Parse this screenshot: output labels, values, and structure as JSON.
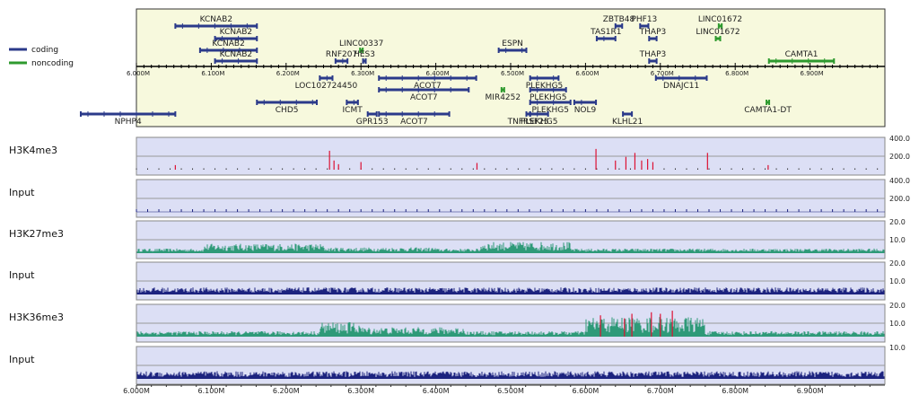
{
  "chart_data": {
    "type": "genome-browser",
    "x_range": [
      6000000,
      7000000
    ],
    "x_unit": "bp",
    "tick_labels": [
      "6.000M",
      "6.100M",
      "6.200M",
      "6.300M",
      "6.400M",
      "6.500M",
      "6.600M",
      "6.700M",
      "6.800M",
      "6.900M"
    ],
    "tick_values": [
      6000000,
      6100000,
      6200000,
      6300000,
      6400000,
      6500000,
      6600000,
      6700000,
      6800000,
      6900000
    ],
    "legend": [
      {
        "name": "coding",
        "color": "#2b3a8a"
      },
      {
        "name": "noncoding",
        "color": "#2e9a2e"
      }
    ],
    "colors": {
      "coding": "#2b3a8a",
      "noncoding": "#2e9a2e",
      "gene_panel_bg": "#f7f9dd",
      "track_bg": "#dcdff5",
      "signal_teal": "#2e9a78",
      "signal_red": "#dd1133",
      "signal_navy": "#1c237f"
    },
    "genes": [
      {
        "label": "KCNAB2",
        "start": 6052000,
        "end": 6161000,
        "strand": "+",
        "type": "coding",
        "side": "above",
        "row": 0
      },
      {
        "label": "KCNAB2",
        "start": 6105000,
        "end": 6161000,
        "strand": "+",
        "type": "coding",
        "side": "above",
        "row": 1
      },
      {
        "label": "KCNAB2",
        "start": 6085000,
        "end": 6161000,
        "strand": "+",
        "type": "coding",
        "side": "above",
        "row": 2
      },
      {
        "label": "KCNAB2",
        "start": 6105000,
        "end": 6161000,
        "strand": "+",
        "type": "coding",
        "side": "above",
        "row": 3
      },
      {
        "label": "LINC00337",
        "start": 6300000,
        "end": 6303000,
        "strand": "-",
        "type": "noncoding",
        "side": "above",
        "row": 2
      },
      {
        "label": "RNF207",
        "start": 6266000,
        "end": 6282000,
        "strand": "+",
        "type": "coding",
        "side": "above",
        "row": 3
      },
      {
        "label": "HES3",
        "start": 6304000,
        "end": 6306000,
        "strand": "+",
        "type": "coding",
        "side": "above",
        "row": 3
      },
      {
        "label": "ESPN",
        "start": 6484000,
        "end": 6521000,
        "strand": "+",
        "type": "coding",
        "side": "above",
        "row": 2
      },
      {
        "label": "ZBTB48",
        "start": 6640000,
        "end": 6649000,
        "strand": "+",
        "type": "coding",
        "side": "above",
        "row": 0
      },
      {
        "label": "PHF13",
        "start": 6673000,
        "end": 6684000,
        "strand": "+",
        "type": "coding",
        "side": "above",
        "row": 0
      },
      {
        "label": "TAS1R1",
        "start": 6615000,
        "end": 6640000,
        "strand": "+",
        "type": "coding",
        "side": "above",
        "row": 1
      },
      {
        "label": "THAP3",
        "start": 6685000,
        "end": 6695000,
        "strand": "+",
        "type": "coding",
        "side": "above",
        "row": 1
      },
      {
        "label": "THAP3",
        "start": 6685000,
        "end": 6695000,
        "strand": "+",
        "type": "coding",
        "side": "above",
        "row": 3
      },
      {
        "label": "LINC01672",
        "start": 6778000,
        "end": 6782000,
        "strand": "+",
        "type": "noncoding",
        "side": "above",
        "row": 0
      },
      {
        "label": "LINC01672",
        "start": 6774000,
        "end": 6780000,
        "strand": "+",
        "type": "noncoding",
        "side": "above",
        "row": 1
      },
      {
        "label": "CAMTA1",
        "start": 6845000,
        "end": 6932000,
        "strand": "+",
        "type": "noncoding",
        "side": "above",
        "row": 3
      },
      {
        "label": "LOC102724450",
        "start": 6245000,
        "end": 6262000,
        "strand": "-",
        "type": "coding",
        "side": "below",
        "row": 0
      },
      {
        "label": "ACOT7",
        "start": 6324000,
        "end": 6454000,
        "strand": "-",
        "type": "coding",
        "side": "below",
        "row": 0
      },
      {
        "label": "ACOT7",
        "start": 6324000,
        "end": 6444000,
        "strand": "-",
        "type": "coding",
        "side": "below",
        "row": 1
      },
      {
        "label": "PLEKHG5",
        "start": 6526000,
        "end": 6564000,
        "strand": "-",
        "type": "coding",
        "side": "below",
        "row": 0
      },
      {
        "label": "DNAJC11",
        "start": 6694000,
        "end": 6762000,
        "strand": "-",
        "type": "coding",
        "side": "below",
        "row": 0
      },
      {
        "label": "MIR4252",
        "start": 6489000,
        "end": 6490000,
        "strand": "-",
        "type": "noncoding",
        "side": "below",
        "row": 1
      },
      {
        "label": "PLEKHG5",
        "start": 6526000,
        "end": 6574000,
        "strand": "-",
        "type": "coding",
        "side": "below",
        "row": 1
      },
      {
        "label": "CHD5",
        "start": 6161000,
        "end": 6241000,
        "strand": "-",
        "type": "coding",
        "side": "below",
        "row": 2
      },
      {
        "label": "ICMT",
        "start": 6281000,
        "end": 6296000,
        "strand": "-",
        "type": "coding",
        "side": "below",
        "row": 2
      },
      {
        "label": "PLEKHG5",
        "start": 6526000,
        "end": 6580000,
        "strand": "-",
        "type": "coding",
        "side": "below",
        "row": 2
      },
      {
        "label": "NOL9",
        "start": 6585000,
        "end": 6614000,
        "strand": "-",
        "type": "coding",
        "side": "below",
        "row": 2
      },
      {
        "label": "CAMTA1-DT",
        "start": 6843000,
        "end": 6845000,
        "strand": "-",
        "type": "noncoding",
        "side": "below",
        "row": 2
      },
      {
        "label": "NPHP4",
        "start": 5923000,
        "end": 6052000,
        "strand": "-",
        "type": "coding",
        "side": "below",
        "row": 3
      },
      {
        "label": "GPR153",
        "start": 6309000,
        "end": 6321000,
        "strand": "-",
        "type": "coding",
        "side": "below",
        "row": 3
      },
      {
        "label": "ACOT7",
        "start": 6324000,
        "end": 6418000,
        "strand": "-",
        "type": "coding",
        "side": "below",
        "row": 3
      },
      {
        "label": "TNFRSF25",
        "start": 6521000,
        "end": 6526000,
        "strand": "-",
        "type": "coding",
        "side": "below",
        "row": 3
      },
      {
        "label": "PLEKHG5",
        "start": 6526000,
        "end": 6550000,
        "strand": "-",
        "type": "coding",
        "side": "below",
        "row": 3
      },
      {
        "label": "KLHL21",
        "start": 6650000,
        "end": 6662000,
        "strand": "-",
        "type": "coding",
        "side": "below",
        "row": 3
      }
    ],
    "tracks": [
      {
        "name": "H3K4me3",
        "scale_top": "400.0",
        "scale_mid": "200.0",
        "mid_fraction": 0.5,
        "color": "#dd1133",
        "style": "sparse",
        "peaks": [
          [
            6052000,
            0.15
          ],
          [
            6258000,
            0.62
          ],
          [
            6264000,
            0.3
          ],
          [
            6270000,
            0.18
          ],
          [
            6300000,
            0.25
          ],
          [
            6455000,
            0.22
          ],
          [
            6614000,
            0.68
          ],
          [
            6640000,
            0.3
          ],
          [
            6654000,
            0.42
          ],
          [
            6666000,
            0.55
          ],
          [
            6675000,
            0.3
          ],
          [
            6683000,
            0.35
          ],
          [
            6690000,
            0.25
          ],
          [
            6763000,
            0.55
          ],
          [
            6844000,
            0.15
          ]
        ]
      },
      {
        "name": "Input",
        "scale_top": "400.0",
        "scale_mid": "200.0",
        "mid_fraction": 0.5,
        "color": "#1c237f",
        "style": "ticks"
      },
      {
        "name": "H3K27me3",
        "scale_top": "20.0",
        "scale_mid": "10.0",
        "mid_fraction": 0.5,
        "color": "#2e9a78",
        "style": "noise",
        "base": 0.12,
        "regions": [
          [
            6090000,
            6250000,
            0.28
          ],
          [
            6460000,
            6580000,
            0.34
          ],
          [
            6250000,
            6400000,
            0.16
          ]
        ]
      },
      {
        "name": "Input",
        "scale_top": "20.0",
        "scale_mid": "10.0",
        "mid_fraction": 0.5,
        "color": "#1c237f",
        "style": "noise",
        "base": 0.2
      },
      {
        "name": "H3K36me3",
        "scale_top": "20.0",
        "scale_mid": "10.0",
        "mid_fraction": 0.5,
        "color": "#2e9a78",
        "style": "noise",
        "base": 0.15,
        "regions": [
          [
            6245000,
            6300000,
            0.45
          ],
          [
            6300000,
            6440000,
            0.28
          ],
          [
            6600000,
            6760000,
            0.62
          ]
        ],
        "red_peaks": [
          [
            6620000,
            0.7
          ],
          [
            6652000,
            0.6
          ],
          [
            6662000,
            0.75
          ],
          [
            6688000,
            0.8
          ],
          [
            6700000,
            0.75
          ],
          [
            6716000,
            0.85
          ]
        ]
      },
      {
        "name": "Input",
        "scale_top": "10.0",
        "scale_mid": "",
        "mid_fraction": 0.5,
        "color": "#1c237f",
        "style": "noise",
        "base": 0.22
      }
    ]
  }
}
